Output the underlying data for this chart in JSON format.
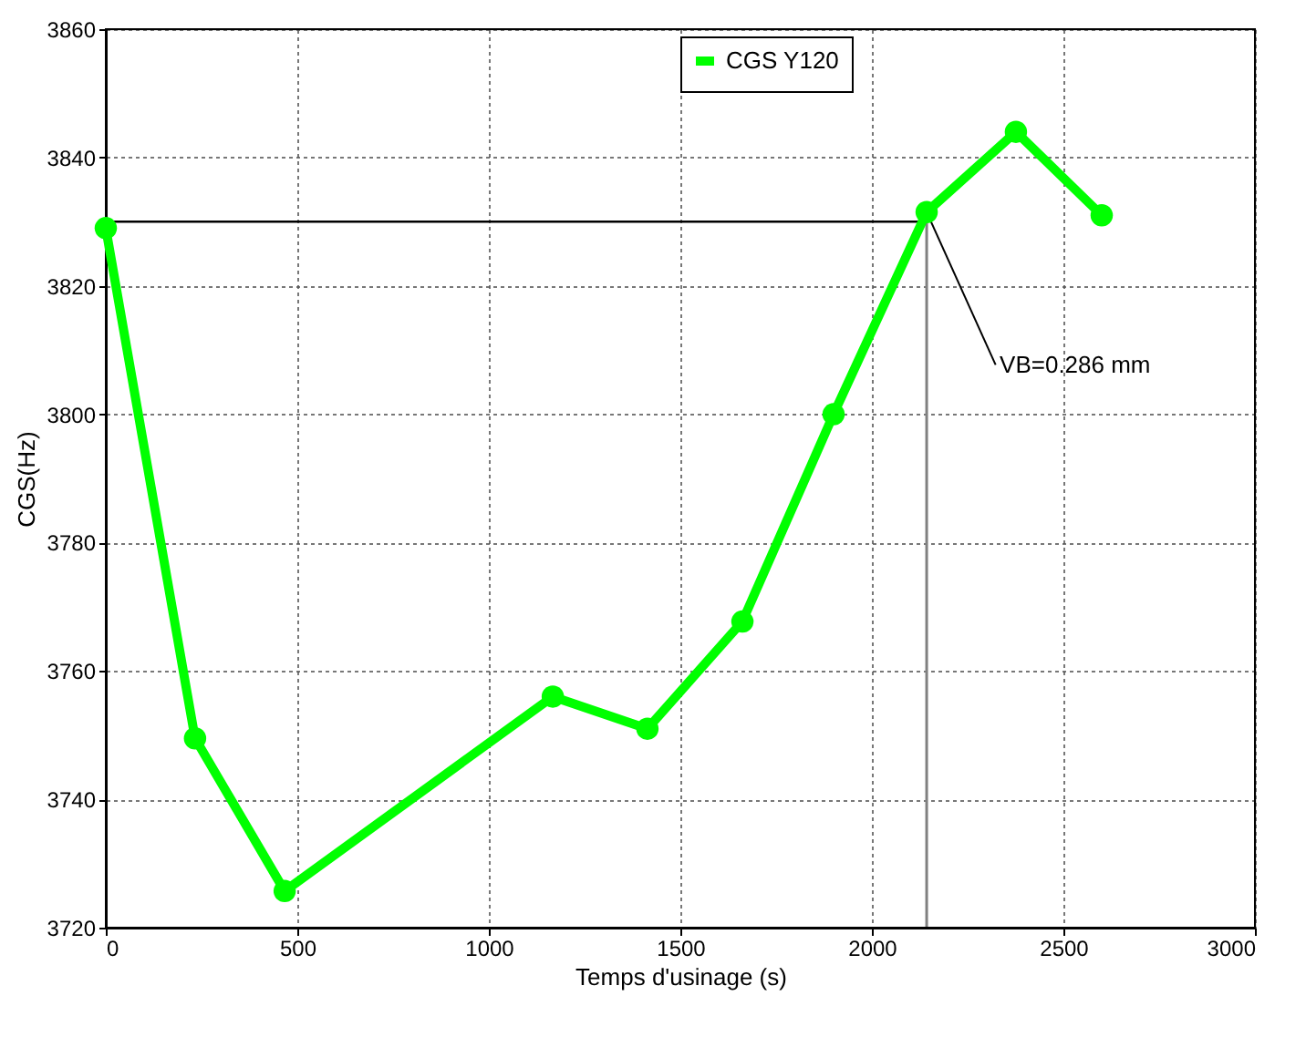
{
  "chart_data": {
    "type": "line",
    "xlabel": "Temps d'usinage (s)",
    "ylabel": "CGS(Hz)",
    "x": [
      0,
      233,
      467,
      1167,
      1414,
      1662,
      1900,
      2143,
      2376,
      2600
    ],
    "series": [
      {
        "name": "CGS Y120",
        "color": "#00ff00",
        "values": [
          3829,
          3749.5,
          3725.7,
          3756,
          3751,
          3767.7,
          3800,
          3831.5,
          3844,
          3831
        ]
      }
    ],
    "xlim": [
      0,
      3000
    ],
    "xticks": [
      0,
      500,
      1000,
      1500,
      2000,
      2500,
      3000
    ],
    "ylim": [
      3720,
      3860
    ],
    "yticks": [
      3720,
      3740,
      3760,
      3780,
      3800,
      3820,
      3840,
      3860
    ],
    "ref_lines": [
      {
        "axis": "y",
        "value": 3830,
        "color": "#000000"
      },
      {
        "axis": "x",
        "value": 2143,
        "color": "#808080"
      }
    ],
    "annotations": [
      {
        "text": "VB=0.286 mm",
        "x": 2143,
        "y": 3831.5
      }
    ],
    "grid": true,
    "legend": "top",
    "marker": "circle",
    "line_style": "solid"
  }
}
